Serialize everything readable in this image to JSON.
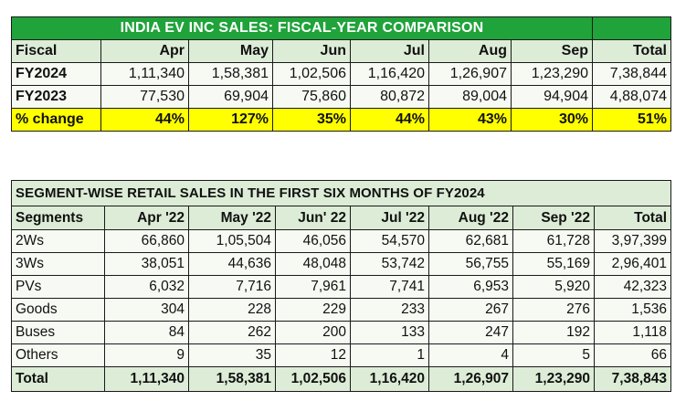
{
  "fiscal_table": {
    "title": "INDIA EV INC SALES: FISCAL-YEAR COMPARISON",
    "header": [
      "Fiscal",
      "Apr",
      "May",
      "Jun",
      "Jul",
      "Aug",
      "Sep",
      "Total"
    ],
    "rows": [
      {
        "label": "FY2024",
        "values": [
          "1,11,340",
          "1,58,381",
          "1,02,506",
          "1,16,420",
          "1,26,907",
          "1,23,290",
          "7,38,844"
        ]
      },
      {
        "label": "FY2023",
        "values": [
          "77,530",
          "69,904",
          "75,860",
          "80,872",
          "89,004",
          "94,904",
          "4,88,074"
        ]
      }
    ],
    "change_row": {
      "label": "% change",
      "values": [
        "44%",
        "127%",
        "35%",
        "44%",
        "43%",
        "30%",
        "51%"
      ]
    },
    "colors": {
      "title_bg": "#1fa33a",
      "header_bg": "#dcecd6",
      "change_bg": "#ffff00"
    }
  },
  "segment_table": {
    "title": "SEGMENT-WISE RETAIL SALES IN THE FIRST SIX MONTHS OF FY2024",
    "header": [
      "Segments",
      "Apr '22",
      "May '22",
      "Jun' 22",
      "Jul '22",
      "Aug '22",
      "Sep '22",
      "Total"
    ],
    "rows": [
      {
        "label": "2Ws",
        "values": [
          "66,860",
          "1,05,504",
          "46,056",
          "54,570",
          "62,681",
          "61,728",
          "3,97,399"
        ]
      },
      {
        "label": "3Ws",
        "values": [
          "38,051",
          "44,636",
          "48,048",
          "53,742",
          "56,755",
          "55,169",
          "2,96,401"
        ]
      },
      {
        "label": "PVs",
        "values": [
          "6,032",
          "7,716",
          "7,961",
          "7,741",
          "6,953",
          "5,920",
          "42,323"
        ]
      },
      {
        "label": "Goods",
        "values": [
          "304",
          "228",
          "229",
          "233",
          "267",
          "276",
          "1,536"
        ]
      },
      {
        "label": "Buses",
        "values": [
          "84",
          "262",
          "200",
          "133",
          "247",
          "192",
          "1,118"
        ]
      },
      {
        "label": "Others",
        "values": [
          "9",
          "35",
          "12",
          "1",
          "4",
          "5",
          "66"
        ]
      }
    ],
    "total_row": {
      "label": "Total",
      "values": [
        "1,11,340",
        "1,58,381",
        "1,02,506",
        "1,16,420",
        "1,26,907",
        "1,23,290",
        "7,38,843"
      ]
    }
  }
}
